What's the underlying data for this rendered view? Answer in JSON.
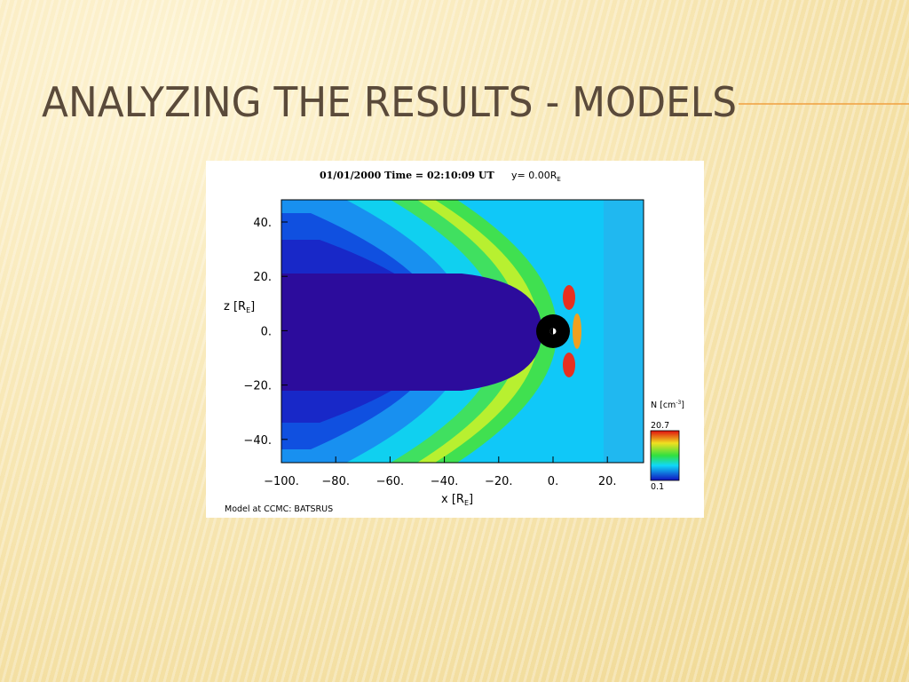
{
  "title": "ANALYZING THE RESULTS - MODELS",
  "figure": {
    "header": "01/01/2000 Time = 02:10:09 UT",
    "slice": {
      "text": "y= 0.00R",
      "sub": "E"
    },
    "x_ticks": [
      "−100.",
      "−80.",
      "−60.",
      "−40.",
      "−20.",
      "0.",
      "20."
    ],
    "z_ticks": [
      "40.",
      "20.",
      "0.",
      "−20.",
      "−40."
    ],
    "x_label": {
      "text": "x [R",
      "sub": "E",
      "end": "]"
    },
    "z_label": {
      "text": "z [R",
      "sub": "E",
      "end": "]"
    },
    "colorbar": {
      "label": {
        "text": "N [cm",
        "sup": "-3",
        "end": "]"
      },
      "max": "20.7",
      "min": "0.1"
    },
    "credit": "Model at CCMC: BATSRUS"
  }
}
